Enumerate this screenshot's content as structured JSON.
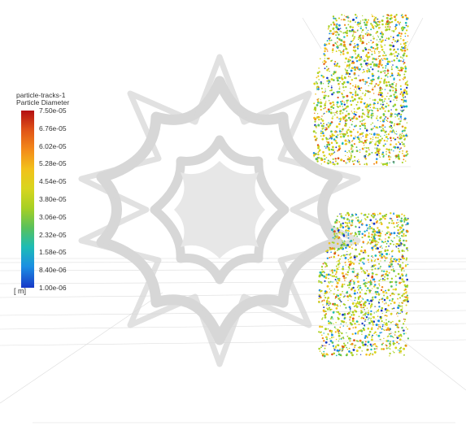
{
  "legend": {
    "title": "particle-tracks-1",
    "subtitle": "Particle Diameter",
    "ticks": [
      "7.50e-05",
      "6.76e-05",
      "6.02e-05",
      "5.28e-05",
      "4.54e-05",
      "3.80e-05",
      "3.06e-05",
      "2.32e-05",
      "1.58e-05",
      "8.40e-06",
      "1.00e-06"
    ],
    "unit": "[ m]",
    "colors": [
      "#b40f12",
      "#e05418",
      "#f38a1a",
      "#f2c11b",
      "#d8d51e",
      "#a7d024",
      "#5ac15b",
      "#1dbcb5",
      "#1b8fe3",
      "#1838c7"
    ]
  },
  "view": {
    "background": "#ffffff",
    "watermark": "rosette-watermark"
  }
}
